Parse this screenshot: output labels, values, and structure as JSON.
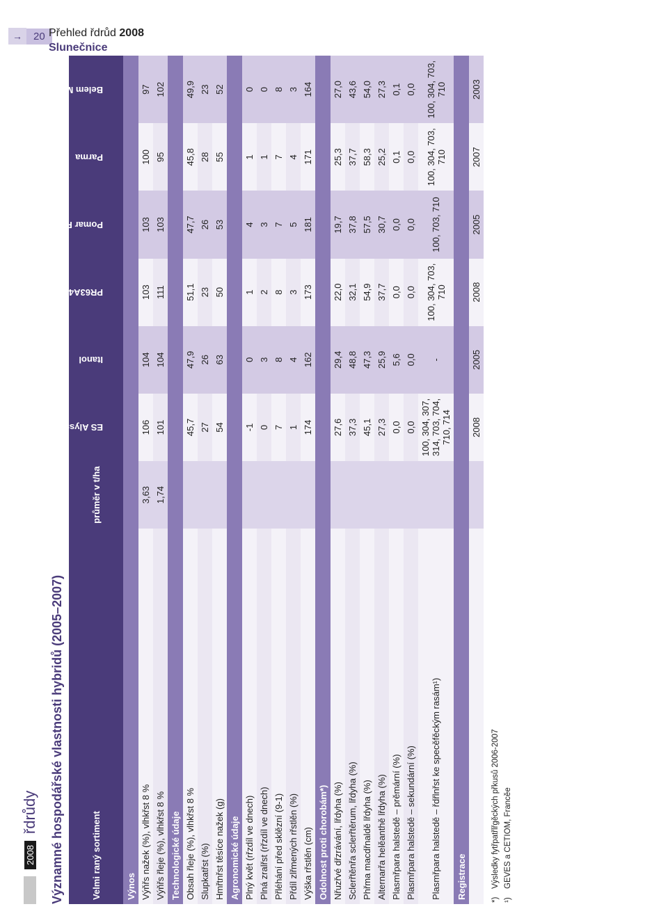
{
  "page": {
    "arrow": "→",
    "number": "20",
    "footer_line1_prefix": "Přehled řdrůd ",
    "footer_year": "2008",
    "footer_line2": "Slunečnice",
    "top_year_badge": "2008",
    "top_section_suffix": " řdrůdy"
  },
  "title": "Významné hospodářské vlastnosti hybridů (2005–2007)",
  "header": {
    "label": "Velmi raný sortiment",
    "avg": "průměr v t/ha",
    "varieties": [
      "ES Alyssa",
      "Itanol",
      "PR63A40",
      "Pomar RM",
      "Parma",
      "Belem M"
    ]
  },
  "sections": [
    {
      "band": "Výnos",
      "rows": [
        {
          "label": "Výňřs nažek (%), vlhkřst 8 %",
          "avg": "3,63",
          "v": [
            "106",
            "104",
            "103",
            "103",
            "100",
            "97"
          ]
        },
        {
          "label": "Výňřs řleje (%), vlhkřst 8 %",
          "avg": "1,74",
          "v": [
            "101",
            "104",
            "111",
            "103",
            "95",
            "102"
          ]
        }
      ]
    },
    {
      "band": "Technologické údaje",
      "rows": [
        {
          "label": "Obsah řleje (%), vlhkřst 8 %",
          "avg": "",
          "v": [
            "45,7",
            "47,9",
            "51,1",
            "47,7",
            "45,8",
            "49,9"
          ]
        },
        {
          "label": "Slupkatřst (%)",
          "avg": "",
          "v": [
            "27",
            "26",
            "23",
            "26",
            "28",
            "23"
          ]
        },
        {
          "label": "Hmřtnřst těsíce nažek (g)",
          "avg": "",
          "v": [
            "54",
            "63",
            "50",
            "53",
            "55",
            "52"
          ]
        }
      ]
    },
    {
      "band": "Agronomické údaje",
      "rows": [
        {
          "label": "Plný květ (rřzdíl ve dnech)",
          "avg": "",
          "v": [
            "-1",
            "0",
            "1",
            "4",
            "1",
            "0"
          ]
        },
        {
          "label": "Plná zralřst (rřzdíl ve dnech)",
          "avg": "",
          "v": [
            "0",
            "3",
            "2",
            "3",
            "1",
            "0"
          ]
        },
        {
          "label": "Přléhání před sklězní (9-1)",
          "avg": "",
          "v": [
            "7",
            "8",
            "8",
            "7",
            "7",
            "8"
          ]
        },
        {
          "label": "Přdíl zlřmených rřstlěn (%)",
          "avg": "",
          "v": [
            "1",
            "4",
            "3",
            "5",
            "4",
            "3"
          ]
        },
        {
          "label": "Výška rřstlěn (cm)",
          "avg": "",
          "v": [
            "174",
            "162",
            "173",
            "181",
            "171",
            "164"
          ]
        }
      ]
    },
    {
      "band": "Odolnost proti chorobám*)",
      "rows": [
        {
          "label": "Nřuzřvé dřzrávání, lřdyha (%)",
          "avg": "",
          "v": [
            "27,6",
            "29,4",
            "22,0",
            "19,7",
            "25,3",
            "27,0"
          ]
        },
        {
          "label": "Sclerřtěnřa sclerřtěrum, lřdyha (%)",
          "avg": "",
          "v": [
            "37,3",
            "48,8",
            "32,1",
            "37,8",
            "37,7",
            "43,6"
          ]
        },
        {
          "label": "Phřma macdřnaldě lřdyha (%)",
          "avg": "",
          "v": [
            "45,1",
            "47,3",
            "54,9",
            "57,5",
            "58,3",
            "54,0"
          ]
        },
        {
          "label": "Alternarřa helěanthě lřdyha (%)",
          "avg": "",
          "v": [
            "27,3",
            "25,9",
            "37,7",
            "30,7",
            "25,2",
            "27,3"
          ]
        },
        {
          "label": "Plasmřpara halstedě – prěmární (%)",
          "avg": "",
          "v": [
            "0,0",
            "5,6",
            "0,0",
            "0,0",
            "0,1",
            "0,1"
          ]
        },
        {
          "label": "Plasmřpara halstedě – sekundární (%)",
          "avg": "",
          "v": [
            "0,0",
            "0,0",
            "0,0",
            "0,0",
            "0,0",
            "0,0"
          ]
        },
        {
          "label": "Plasmřpara halstedě – řdřlnřst ke specěfěckým rasám¹)",
          "avg": "",
          "v": [
            "100, 304, 307, 314, 703, 704, 710, 714",
            "-",
            "100, 304, 703, 710",
            "100, 703, 710",
            "100, 304, 703, 710",
            "100, 304, 703, 710"
          ]
        }
      ]
    },
    {
      "band": "Registrace",
      "rows": [
        {
          "label": "",
          "avg": "",
          "v": [
            "2008",
            "2005",
            "2008",
            "2005",
            "2007",
            "2003"
          ]
        }
      ]
    }
  ],
  "footnotes": [
    {
      "mark": "*)",
      "text": "Výsledky fytřpatřlřgěckých přkusů 2006-2007"
    },
    {
      "mark": "¹)",
      "text": "GEVES a CETIOM, Francěe"
    }
  ],
  "colors": {
    "purple_dark": "#4a3b7a",
    "purple_mid": "#8a7bb5",
    "row_a": "#f4f2f8",
    "row_b": "#ebe7f2",
    "shade": "#dcd5ea"
  }
}
